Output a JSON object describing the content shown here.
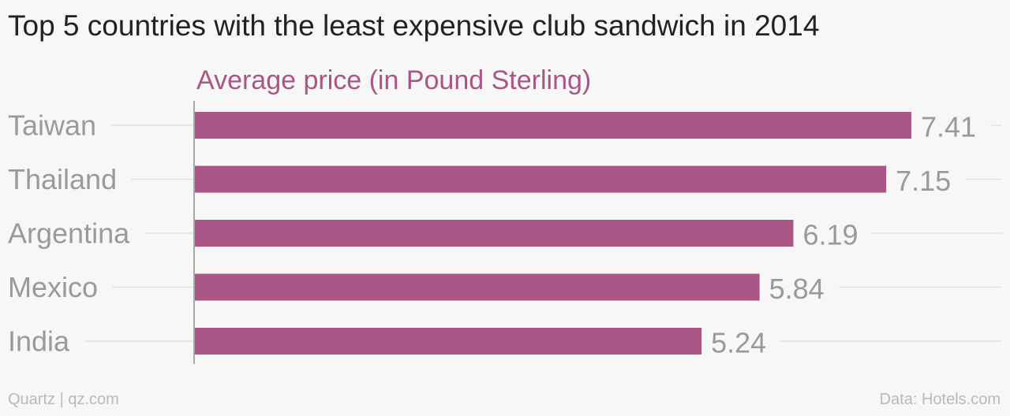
{
  "title": "Top 5 countries with the least expensive club sandwich in 2014",
  "footer": {
    "source_left": "Quartz | qz.com",
    "source_right": "Data: Hotels.com"
  },
  "colors": {
    "bar": "#a95686",
    "series_label": "#a95686",
    "category_label": "#9a9a9a",
    "value_label": "#9a9a9a",
    "gridline": "#e4e4e4",
    "axis": "#a8a8a8",
    "background": "#f7f7f7"
  },
  "chart_data": {
    "type": "bar",
    "orientation": "horizontal",
    "categories": [
      "Taiwan",
      "Thailand",
      "Argentina",
      "Mexico",
      "India"
    ],
    "series": [
      {
        "name": "Average price (in Pound Sterling)",
        "values": [
          7.41,
          7.15,
          6.19,
          5.84,
          5.24
        ]
      }
    ],
    "value_labels": [
      "7.41",
      "7.15",
      "6.19",
      "5.84",
      "5.24"
    ],
    "xlim": [
      0,
      7.41
    ],
    "grid": true,
    "legend": "top-left"
  }
}
